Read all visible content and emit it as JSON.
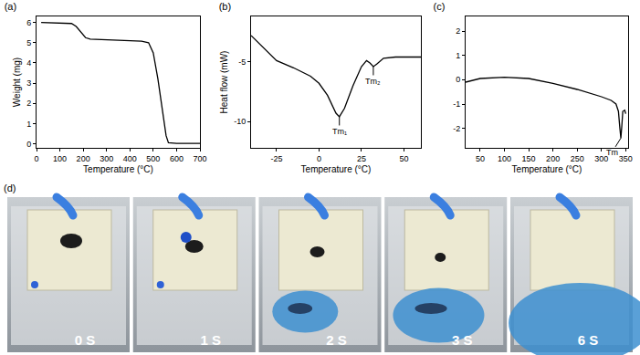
{
  "chart_data": [
    {
      "type": "line",
      "title": "(a)",
      "x_label": "Temperature (°C)",
      "y_label": "Weight (mg)",
      "x": [
        20,
        100,
        150,
        170,
        190,
        210,
        230,
        300,
        400,
        450,
        480,
        500,
        520,
        540,
        555,
        565,
        600,
        700
      ],
      "values": [
        6.0,
        5.98,
        5.95,
        5.8,
        5.5,
        5.25,
        5.18,
        5.15,
        5.12,
        5.08,
        5.0,
        4.5,
        3.2,
        1.6,
        0.4,
        0.05,
        0.02,
        0.02
      ],
      "color": "#000000",
      "xlim": [
        0,
        700
      ],
      "xticks": [
        0,
        100,
        200,
        300,
        400,
        500,
        600,
        700
      ],
      "ylim": [
        -0.2,
        6.3
      ],
      "yticks": [
        0,
        1,
        2,
        3,
        4,
        5,
        6
      ],
      "grid": false
    },
    {
      "type": "line",
      "title": "(b)",
      "x_label": "Temperature (°C)",
      "y_label": "Heat flow (mW)",
      "x": [
        -40,
        -30,
        -25,
        -15,
        -5,
        0,
        5,
        10,
        12,
        15,
        20,
        25,
        28,
        30,
        32,
        34,
        38,
        45,
        60
      ],
      "values": [
        -2.8,
        -4.2,
        -4.9,
        -5.5,
        -6.2,
        -6.8,
        -7.8,
        -9.3,
        -9.6,
        -8.9,
        -7.0,
        -5.4,
        -4.9,
        -5.1,
        -5.4,
        -5.2,
        -4.7,
        -4.6,
        -4.6
      ],
      "color": "#000000",
      "xlim": [
        -40,
        60
      ],
      "xticks": [
        -25,
        0,
        25,
        50
      ],
      "ylim": [
        -12.2,
        -1.2
      ],
      "yticks": [
        -10,
        -5
      ],
      "grid": false,
      "annotations": [
        {
          "text": "Tm₁",
          "x": 12,
          "y": -9.6
        },
        {
          "text": "Tm₂",
          "x": 32,
          "y": -5.4
        }
      ]
    },
    {
      "type": "line",
      "title": "(c)",
      "x_label": "Temperature (°C)",
      "x": [
        20,
        50,
        100,
        150,
        200,
        250,
        300,
        320,
        330,
        335,
        338,
        340,
        342,
        344,
        348,
        350
      ],
      "values": [
        -0.1,
        0.05,
        0.1,
        0.05,
        -0.15,
        -0.4,
        -0.7,
        -0.85,
        -1.0,
        -1.3,
        -2.0,
        -2.4,
        -1.9,
        -1.3,
        -1.25,
        -1.4
      ],
      "color": "#000000",
      "xlim": [
        20,
        355
      ],
      "xticks": [
        50,
        100,
        150,
        200,
        250,
        300,
        350
      ],
      "ylim": [
        -2.8,
        2.6
      ],
      "yticks": [
        -2,
        -1,
        0,
        1,
        2
      ],
      "grid": false,
      "annotations": [
        {
          "text": "Tm",
          "x": 340,
          "y": -2.4
        }
      ]
    }
  ],
  "photo_panel": {
    "title": "(d)",
    "frames": [
      "0 S",
      "1 S",
      "2 S",
      "3 S",
      "6 S"
    ]
  }
}
